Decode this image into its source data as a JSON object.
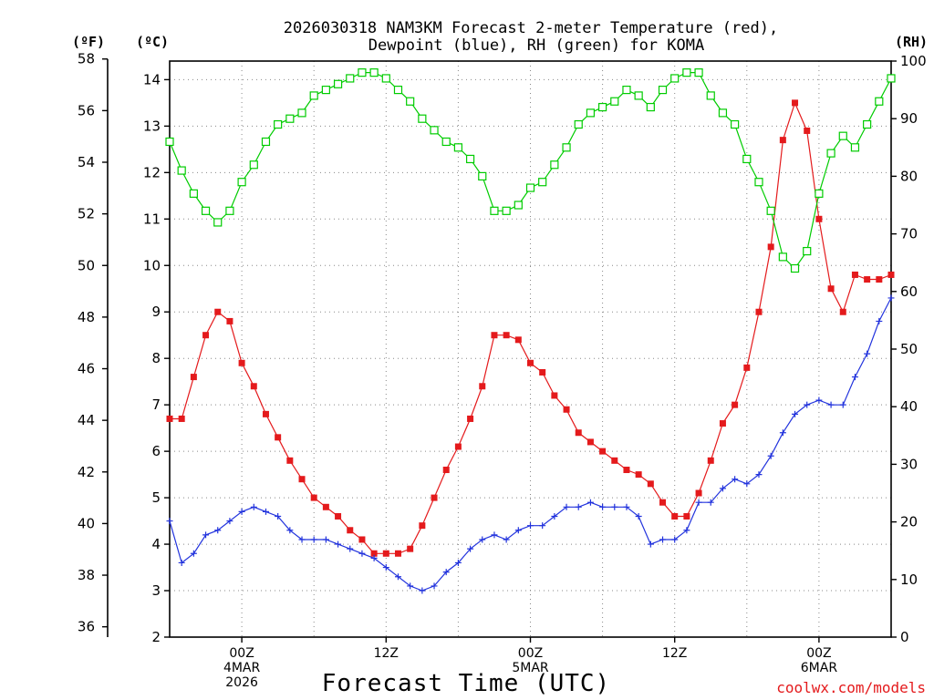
{
  "chart_data": {
    "type": "line",
    "title_line1": "2026030318 NAM3KM Forecast 2-meter Temperature (red),",
    "title_line2": "Dewpoint (blue), RH (green) for KOMA",
    "xlabel": "Forecast Time (UTC)",
    "credit": "coolwx.com/models",
    "y_left_f_label": "(ºF)",
    "y_left_c_label": "(ºC)",
    "y_right_label": "(RH)",
    "y_f_ticks": [
      "58",
      "56",
      "54",
      "52",
      "50",
      "48",
      "46",
      "44",
      "42",
      "40",
      "38",
      "36"
    ],
    "y_c_ticks": [
      "14",
      "13",
      "12",
      "11",
      "10",
      "9",
      "8",
      "7",
      "6",
      "5",
      "4",
      "3",
      "2"
    ],
    "y_rh_ticks": [
      "100",
      "90",
      "80",
      "70",
      "60",
      "50",
      "40",
      "30",
      "20",
      "10",
      "0"
    ],
    "ylim_c": [
      2,
      14.4
    ],
    "ylim_rh": [
      0,
      100
    ],
    "x_range_hours": [
      0,
      60
    ],
    "x_ticks": [
      {
        "hour": 6,
        "lines": [
          "00Z",
          "4MAR",
          "2026"
        ]
      },
      {
        "hour": 18,
        "lines": [
          "12Z"
        ]
      },
      {
        "hour": 30,
        "lines": [
          "00Z",
          "5MAR"
        ]
      },
      {
        "hour": 42,
        "lines": [
          "12Z"
        ]
      },
      {
        "hour": 54,
        "lines": [
          "00Z",
          "6MAR"
        ]
      }
    ],
    "colors": {
      "temperature": "#e41a1c",
      "dewpoint": "#2233dd",
      "rh": "#00cc00",
      "grid": "#888888"
    },
    "series": [
      {
        "name": "Temperature",
        "units": "C",
        "marker": "filled-square",
        "x": [
          0,
          1,
          2,
          3,
          4,
          5,
          6,
          7,
          8,
          9,
          10,
          11,
          12,
          13,
          14,
          15,
          16,
          17,
          18,
          19,
          20,
          21,
          22,
          23,
          24,
          25,
          26,
          27,
          28,
          29,
          30,
          31,
          32,
          33,
          34,
          35,
          36,
          37,
          38,
          39,
          40,
          41,
          42,
          43,
          44,
          45,
          46,
          47,
          48,
          49,
          50,
          51,
          52,
          53,
          54,
          55,
          56,
          57,
          58,
          59,
          60
        ],
        "values": [
          6.7,
          6.7,
          7.6,
          8.5,
          9.0,
          8.8,
          7.9,
          7.4,
          6.8,
          6.3,
          5.8,
          5.4,
          5.0,
          4.8,
          4.6,
          4.3,
          4.1,
          3.8,
          3.8,
          3.8,
          3.9,
          4.4,
          5.0,
          5.6,
          6.1,
          6.7,
          7.4,
          8.5,
          8.5,
          8.4,
          7.9,
          7.7,
          7.2,
          6.9,
          6.4,
          6.2,
          6.0,
          5.8,
          5.6,
          5.5,
          5.3,
          4.9,
          4.6,
          4.6,
          5.1,
          5.8,
          6.6,
          7.0,
          7.8,
          9.0,
          10.4,
          12.7,
          13.5,
          12.9,
          11.0,
          9.5,
          9.0,
          9.8,
          9.7,
          9.7,
          9.8
        ]
      },
      {
        "name": "Dewpoint",
        "units": "C",
        "marker": "plus",
        "x": [
          0,
          1,
          2,
          3,
          4,
          5,
          6,
          7,
          8,
          9,
          10,
          11,
          12,
          13,
          14,
          15,
          16,
          17,
          18,
          19,
          20,
          21,
          22,
          23,
          24,
          25,
          26,
          27,
          28,
          29,
          30,
          31,
          32,
          33,
          34,
          35,
          36,
          37,
          38,
          39,
          40,
          41,
          42,
          43,
          44,
          45,
          46,
          47,
          48,
          49,
          50,
          51,
          52,
          53,
          54,
          55,
          56,
          57,
          58,
          59,
          60
        ],
        "values": [
          4.5,
          3.6,
          3.8,
          4.2,
          4.3,
          4.5,
          4.7,
          4.8,
          4.7,
          4.6,
          4.3,
          4.1,
          4.1,
          4.1,
          4.0,
          3.9,
          3.8,
          3.7,
          3.5,
          3.3,
          3.1,
          3.0,
          3.1,
          3.4,
          3.6,
          3.9,
          4.1,
          4.2,
          4.1,
          4.3,
          4.4,
          4.4,
          4.6,
          4.8,
          4.8,
          4.9,
          4.8,
          4.8,
          4.8,
          4.6,
          4.0,
          4.1,
          4.1,
          4.3,
          4.9,
          4.9,
          5.2,
          5.4,
          5.3,
          5.5,
          5.9,
          6.4,
          6.8,
          7.0,
          7.1,
          7.0,
          7.0,
          7.6,
          8.1,
          8.8,
          9.3
        ]
      },
      {
        "name": "RH",
        "units": "%",
        "marker": "open-square",
        "x": [
          0,
          1,
          2,
          3,
          4,
          5,
          6,
          7,
          8,
          9,
          10,
          11,
          12,
          13,
          14,
          15,
          16,
          17,
          18,
          19,
          20,
          21,
          22,
          23,
          24,
          25,
          26,
          27,
          28,
          29,
          30,
          31,
          32,
          33,
          34,
          35,
          36,
          37,
          38,
          39,
          40,
          41,
          42,
          43,
          44,
          45,
          46,
          47,
          48,
          49,
          50,
          51,
          52,
          53,
          54,
          55,
          56,
          57,
          58,
          59,
          60
        ],
        "values": [
          86,
          81,
          77,
          74,
          72,
          74,
          79,
          82,
          86,
          89,
          90,
          91,
          94,
          95,
          96,
          97,
          98,
          98,
          97,
          95,
          93,
          90,
          88,
          86,
          85,
          83,
          80,
          74,
          74,
          75,
          78,
          79,
          82,
          85,
          89,
          91,
          92,
          93,
          95,
          94,
          92,
          95,
          97,
          98,
          98,
          94,
          91,
          89,
          83,
          79,
          74,
          66,
          64,
          67,
          77,
          84,
          87,
          85,
          89,
          93,
          97
        ]
      }
    ]
  }
}
